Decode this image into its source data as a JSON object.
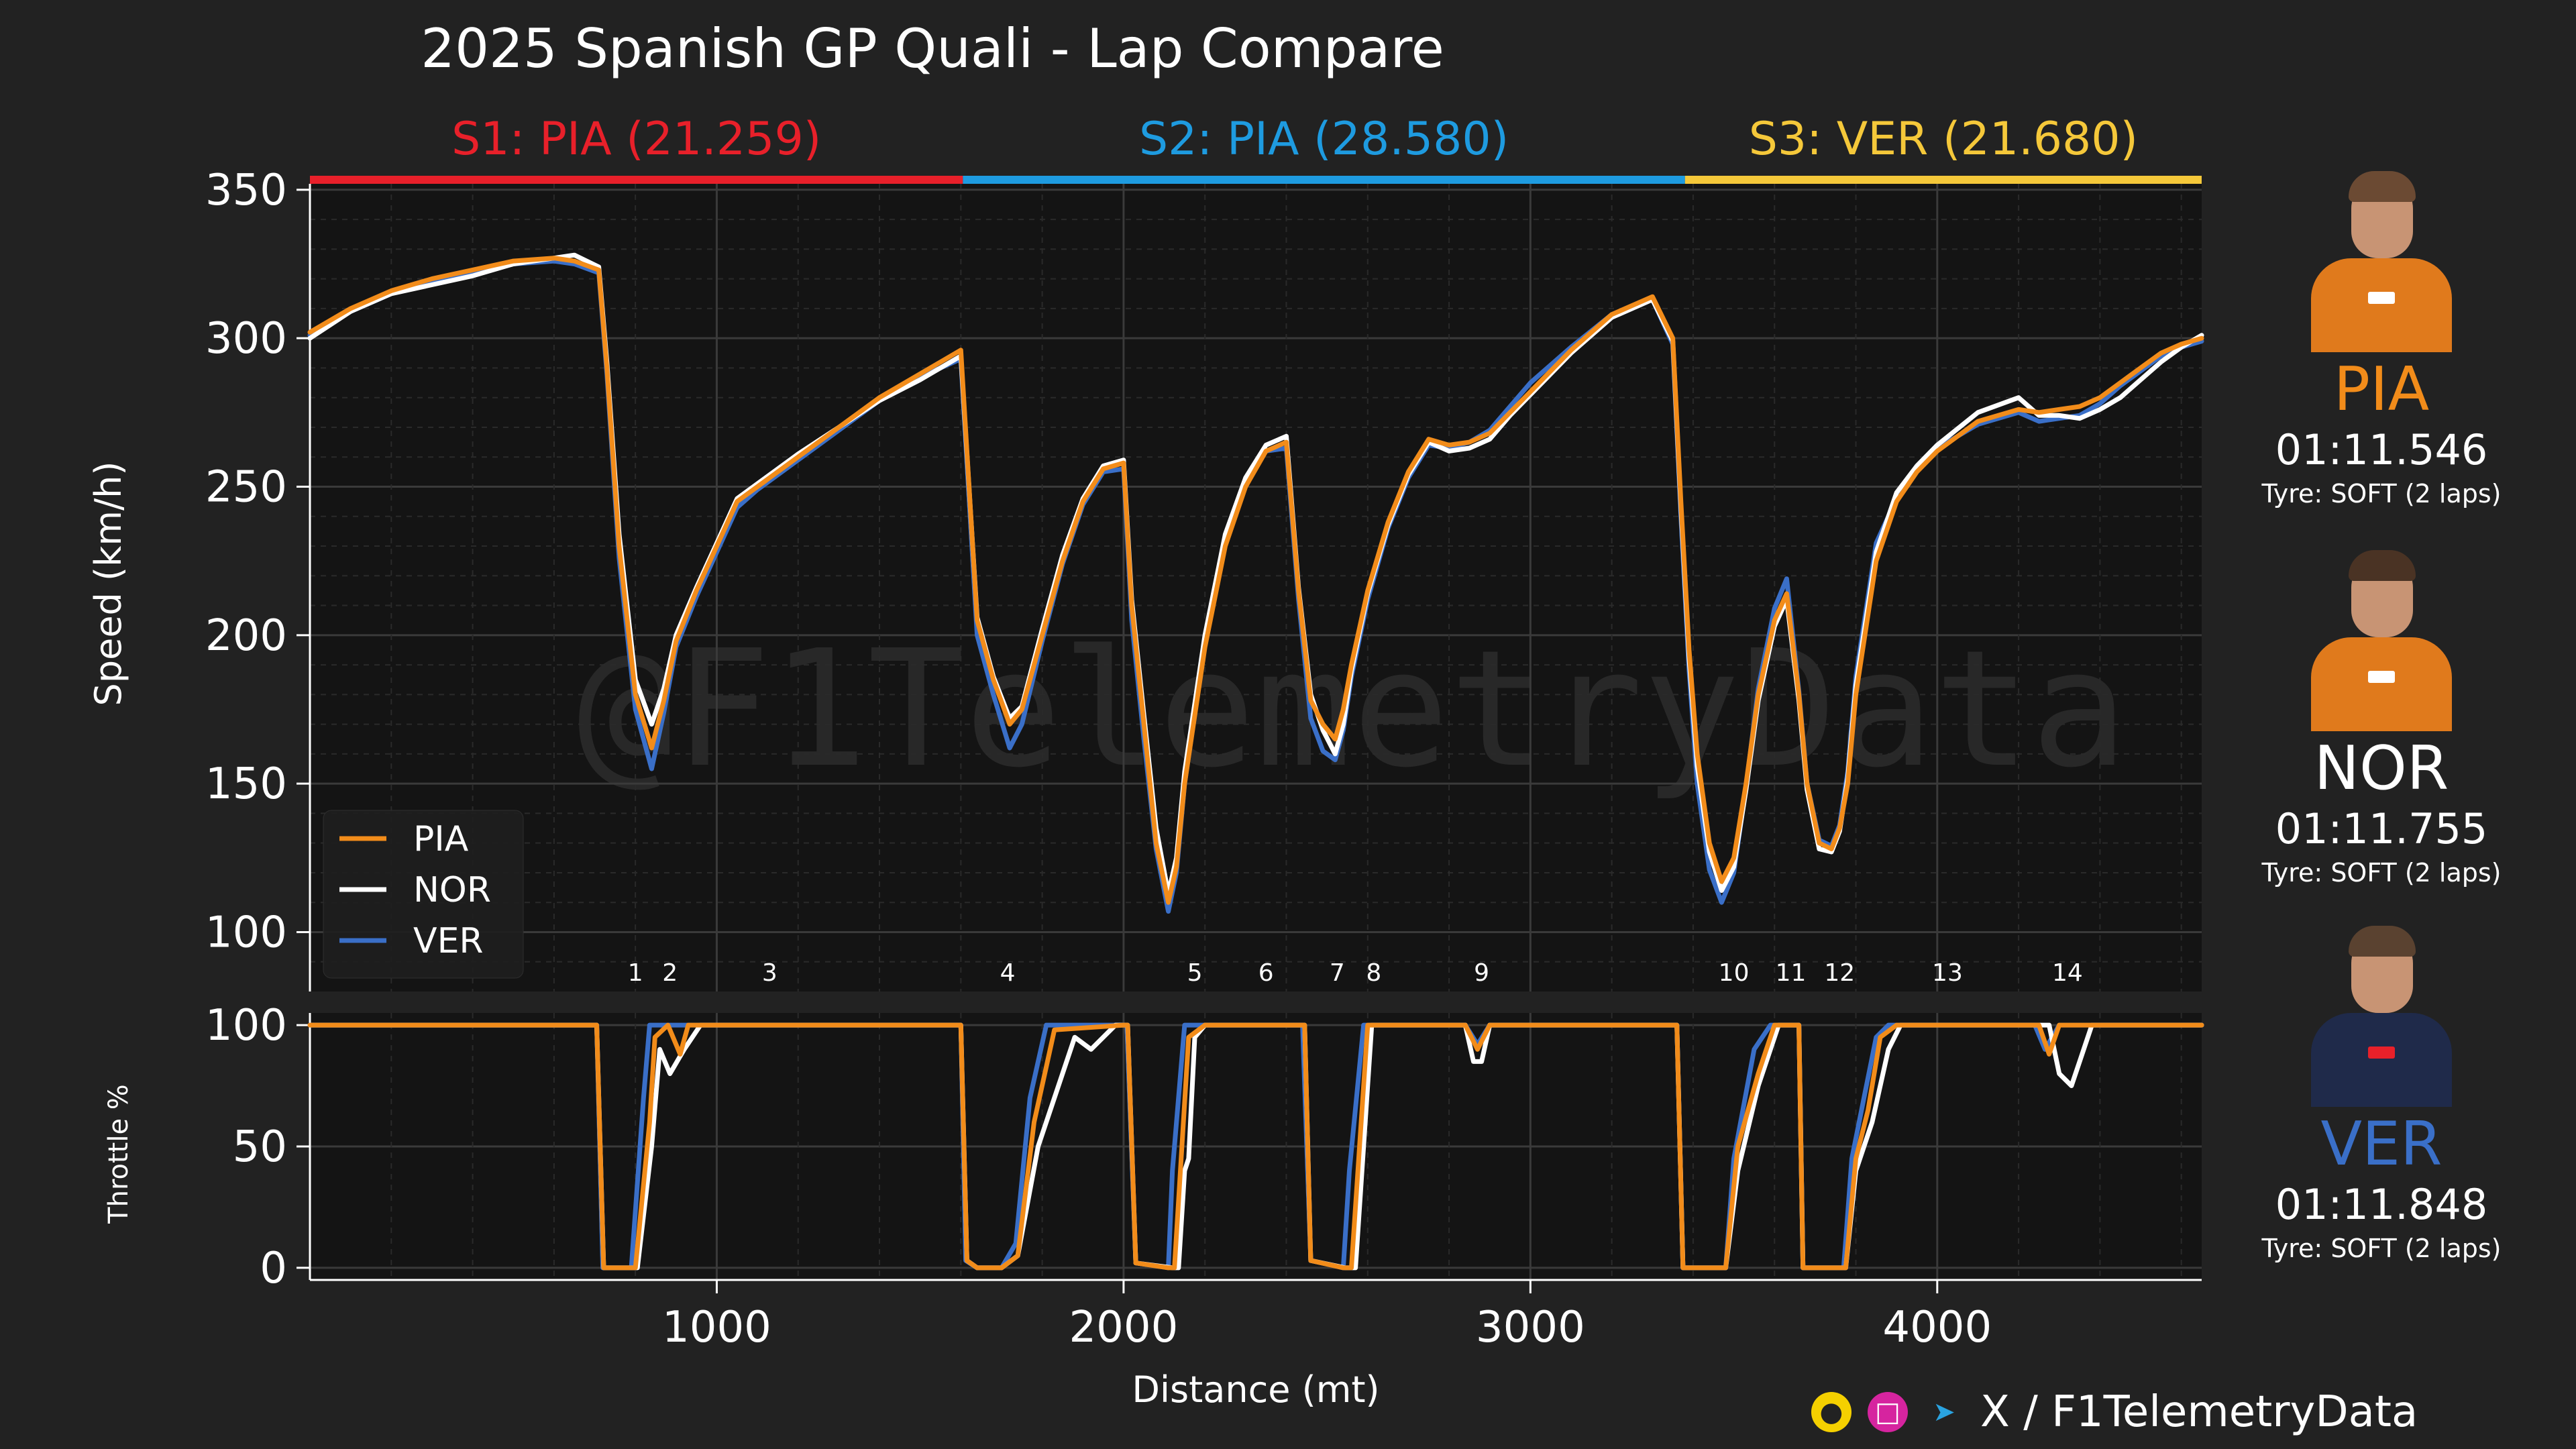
{
  "title": "2025 Spanish GP Quali - Lap Compare",
  "watermark": "@F1TelemetryData",
  "chart_data": {
    "type": "line",
    "title": "2025 Spanish GP Quali - Lap Compare",
    "xlabel": "Distance (mt)",
    "ylabel": "Speed (km/h)",
    "ylabel_throttle": "Throttle %",
    "xlim": [
      0,
      4650
    ],
    "ylim": [
      80,
      352
    ],
    "ylim_throttle": [
      -5,
      105
    ],
    "x_ticks": [
      1000,
      2000,
      3000,
      4000
    ],
    "y_ticks": [
      100,
      150,
      200,
      250,
      300,
      350
    ],
    "y_ticks_throttle": [
      0,
      50,
      100
    ],
    "legend_position": "lower-left",
    "sectors": [
      {
        "label": "S1: PIA (21.259)",
        "start": 0,
        "end": 1605,
        "color": "#e8202a"
      },
      {
        "label": "S2: PIA (28.580)",
        "start": 1605,
        "end": 3380,
        "color": "#1e9be0"
      },
      {
        "label": "S3: VER (21.680)",
        "start": 3380,
        "end": 4650,
        "color": "#f5c83a"
      }
    ],
    "corners": [
      {
        "label": "1",
        "x": 800
      },
      {
        "label": "2",
        "x": 885
      },
      {
        "label": "3",
        "x": 1130
      },
      {
        "label": "4",
        "x": 1715
      },
      {
        "label": "5",
        "x": 2175
      },
      {
        "label": "6",
        "x": 2350
      },
      {
        "label": "7",
        "x": 2525
      },
      {
        "label": "8",
        "x": 2615
      },
      {
        "label": "9",
        "x": 2880
      },
      {
        "label": "10",
        "x": 3500
      },
      {
        "label": "11",
        "x": 3640
      },
      {
        "label": "12",
        "x": 3760
      },
      {
        "label": "13",
        "x": 4025
      },
      {
        "label": "14",
        "x": 4320
      }
    ],
    "speed_x": [
      0,
      100,
      200,
      300,
      400,
      500,
      600,
      650,
      710,
      730,
      760,
      800,
      840,
      870,
      900,
      950,
      1000,
      1050,
      1100,
      1200,
      1300,
      1400,
      1500,
      1600,
      1640,
      1680,
      1720,
      1750,
      1800,
      1850,
      1900,
      1950,
      2000,
      2020,
      2050,
      2080,
      2110,
      2130,
      2150,
      2200,
      2250,
      2300,
      2350,
      2400,
      2430,
      2460,
      2490,
      2520,
      2540,
      2560,
      2600,
      2650,
      2700,
      2750,
      2800,
      2850,
      2900,
      2950,
      3000,
      3100,
      3200,
      3300,
      3350,
      3370,
      3390,
      3410,
      3440,
      3470,
      3500,
      3530,
      3560,
      3600,
      3630,
      3660,
      3680,
      3710,
      3740,
      3760,
      3780,
      3800,
      3850,
      3900,
      3950,
      4000,
      4100,
      4200,
      4250,
      4300,
      4350,
      4400,
      4450,
      4500,
      4550,
      4600,
      4650
    ],
    "series": [
      {
        "name": "PIA",
        "color": "#f28c1a",
        "speed": [
          302,
          310,
          316,
          320,
          323,
          326,
          327,
          326,
          323,
          290,
          230,
          180,
          162,
          178,
          198,
          215,
          230,
          245,
          250,
          260,
          270,
          280,
          288,
          296,
          205,
          185,
          170,
          175,
          200,
          225,
          245,
          256,
          258,
          210,
          170,
          130,
          110,
          122,
          150,
          196,
          230,
          250,
          262,
          265,
          215,
          178,
          170,
          165,
          175,
          190,
          215,
          238,
          255,
          266,
          264,
          265,
          268,
          275,
          282,
          296,
          308,
          314,
          300,
          245,
          195,
          160,
          130,
          117,
          125,
          150,
          180,
          205,
          214,
          180,
          150,
          130,
          128,
          135,
          150,
          180,
          225,
          245,
          255,
          262,
          272,
          276,
          275,
          276,
          277,
          280,
          285,
          290,
          295,
          298,
          300
        ],
        "throttle_x": [
          0,
          680,
          705,
          722,
          800,
          835,
          848,
          880,
          910,
          930,
          1000,
          1100,
          1600,
          1615,
          1640,
          1700,
          1740,
          1780,
          1830,
          2000,
          2010,
          2030,
          2110,
          2125,
          2160,
          2200,
          2300,
          2400,
          2420,
          2445,
          2460,
          2540,
          2560,
          2600,
          2800,
          2840,
          2870,
          2900,
          2950,
          3000,
          3200,
          3360,
          3375,
          3400,
          3480,
          3510,
          3560,
          3600,
          3650,
          3660,
          3670,
          3750,
          3775,
          3800,
          3830,
          3860,
          3900,
          4000,
          4200,
          4250,
          4275,
          4300,
          4500,
          4650
        ],
        "throttle": [
          100,
          100,
          100,
          0,
          0,
          60,
          95,
          100,
          88,
          100,
          100,
          100,
          100,
          3,
          0,
          0,
          5,
          60,
          98,
          100,
          100,
          2,
          0,
          0,
          95,
          100,
          100,
          100,
          100,
          100,
          3,
          0,
          0,
          100,
          100,
          100,
          90,
          100,
          100,
          100,
          100,
          100,
          0,
          0,
          0,
          50,
          80,
          100,
          100,
          100,
          0,
          0,
          0,
          45,
          65,
          95,
          100,
          100,
          100,
          100,
          88,
          100,
          100,
          100
        ]
      },
      {
        "name": "NOR",
        "color": "#ffffff",
        "speed": [
          300,
          309,
          315,
          318,
          321,
          325,
          327,
          328,
          324,
          292,
          234,
          185,
          170,
          182,
          200,
          216,
          231,
          246,
          251,
          261,
          270,
          279,
          286,
          294,
          206,
          186,
          172,
          176,
          202,
          227,
          246,
          257,
          259,
          212,
          173,
          135,
          113,
          125,
          154,
          200,
          234,
          253,
          264,
          267,
          216,
          180,
          168,
          160,
          170,
          188,
          214,
          237,
          254,
          265,
          262,
          263,
          266,
          274,
          281,
          295,
          307,
          313,
          299,
          243,
          192,
          156,
          127,
          114,
          122,
          148,
          178,
          203,
          212,
          178,
          148,
          128,
          127,
          134,
          152,
          183,
          228,
          248,
          257,
          264,
          275,
          280,
          274,
          274,
          273,
          276,
          280,
          286,
          292,
          297,
          301
        ],
        "throttle_x": [
          0,
          680,
          705,
          722,
          805,
          840,
          860,
          885,
          920,
          960,
          1000,
          1100,
          1600,
          1615,
          1640,
          1700,
          1740,
          1790,
          1850,
          1880,
          1920,
          1980,
          2010,
          2030,
          2120,
          2135,
          2150,
          2160,
          2175,
          2200,
          2300,
          2400,
          2420,
          2445,
          2460,
          2545,
          2570,
          2610,
          2800,
          2840,
          2860,
          2880,
          2900,
          2950,
          3000,
          3200,
          3360,
          3375,
          3400,
          3480,
          3510,
          3560,
          3610,
          3660,
          3670,
          3750,
          3775,
          3800,
          3840,
          3880,
          3910,
          4000,
          4200,
          4250,
          4275,
          4300,
          4330,
          4350,
          4380,
          4500,
          4650
        ],
        "throttle": [
          100,
          100,
          100,
          0,
          0,
          50,
          90,
          80,
          90,
          100,
          100,
          100,
          100,
          3,
          0,
          0,
          5,
          50,
          80,
          95,
          90,
          100,
          100,
          2,
          0,
          0,
          40,
          45,
          95,
          100,
          100,
          100,
          100,
          100,
          3,
          0,
          0,
          100,
          100,
          100,
          85,
          85,
          100,
          100,
          100,
          100,
          100,
          0,
          0,
          0,
          40,
          75,
          100,
          100,
          0,
          0,
          0,
          40,
          60,
          90,
          100,
          100,
          100,
          100,
          100,
          80,
          75,
          85,
          100,
          100,
          100
        ]
      },
      {
        "name": "VER",
        "color": "#3a6fc8",
        "speed": [
          301,
          309,
          315,
          319,
          322,
          325,
          326,
          325,
          322,
          288,
          226,
          175,
          155,
          174,
          196,
          213,
          228,
          243,
          249,
          259,
          269,
          279,
          287,
          293,
          200,
          180,
          162,
          170,
          198,
          224,
          244,
          255,
          256,
          205,
          165,
          128,
          107,
          120,
          150,
          197,
          231,
          251,
          262,
          263,
          212,
          172,
          161,
          158,
          168,
          186,
          212,
          236,
          253,
          264,
          263,
          265,
          269,
          277,
          285,
          297,
          308,
          313,
          298,
          240,
          188,
          150,
          121,
          110,
          120,
          149,
          182,
          209,
          219,
          181,
          150,
          131,
          129,
          136,
          154,
          186,
          231,
          246,
          256,
          263,
          271,
          275,
          272,
          273,
          274,
          278,
          284,
          289,
          294,
          297,
          299
        ],
        "throttle_x": [
          0,
          680,
          705,
          720,
          790,
          820,
          835,
          880,
          930,
          1000,
          1100,
          1600,
          1612,
          1640,
          1700,
          1735,
          1770,
          1810,
          2000,
          2008,
          2030,
          2110,
          2120,
          2150,
          2200,
          2300,
          2400,
          2420,
          2440,
          2460,
          2540,
          2555,
          2590,
          2800,
          2840,
          2870,
          2900,
          2950,
          3000,
          3200,
          3360,
          3375,
          3400,
          3480,
          3500,
          3550,
          3590,
          3650,
          3660,
          3670,
          3750,
          3770,
          3790,
          3820,
          3850,
          3880,
          4000,
          4200,
          4240,
          4265,
          4300,
          4500,
          4650
        ],
        "throttle": [
          100,
          100,
          100,
          0,
          0,
          70,
          100,
          100,
          100,
          100,
          100,
          100,
          3,
          0,
          0,
          10,
          70,
          100,
          100,
          100,
          2,
          0,
          40,
          100,
          100,
          100,
          100,
          100,
          100,
          3,
          0,
          40,
          100,
          100,
          100,
          92,
          100,
          100,
          100,
          100,
          100,
          0,
          0,
          0,
          45,
          90,
          100,
          100,
          100,
          0,
          0,
          0,
          45,
          70,
          95,
          100,
          100,
          100,
          100,
          90,
          100,
          100,
          100
        ]
      }
    ]
  },
  "drivers": [
    {
      "code": "PIA",
      "lap_time": "01:11.546",
      "tyre": "Tyre: SOFT (2 laps)",
      "color": "#f28c1a"
    },
    {
      "code": "NOR",
      "lap_time": "01:11.755",
      "tyre": "Tyre: SOFT (2 laps)",
      "color": "#ffffff"
    },
    {
      "code": "VER",
      "lap_time": "01:11.848",
      "tyre": "Tyre: SOFT (2 laps)",
      "color": "#3a6fc8"
    }
  ],
  "footer": {
    "handle": "X / F1TelemetryData",
    "icons": [
      "beer-icon",
      "instagram-icon",
      "telegram-icon",
      "x-icon"
    ]
  }
}
